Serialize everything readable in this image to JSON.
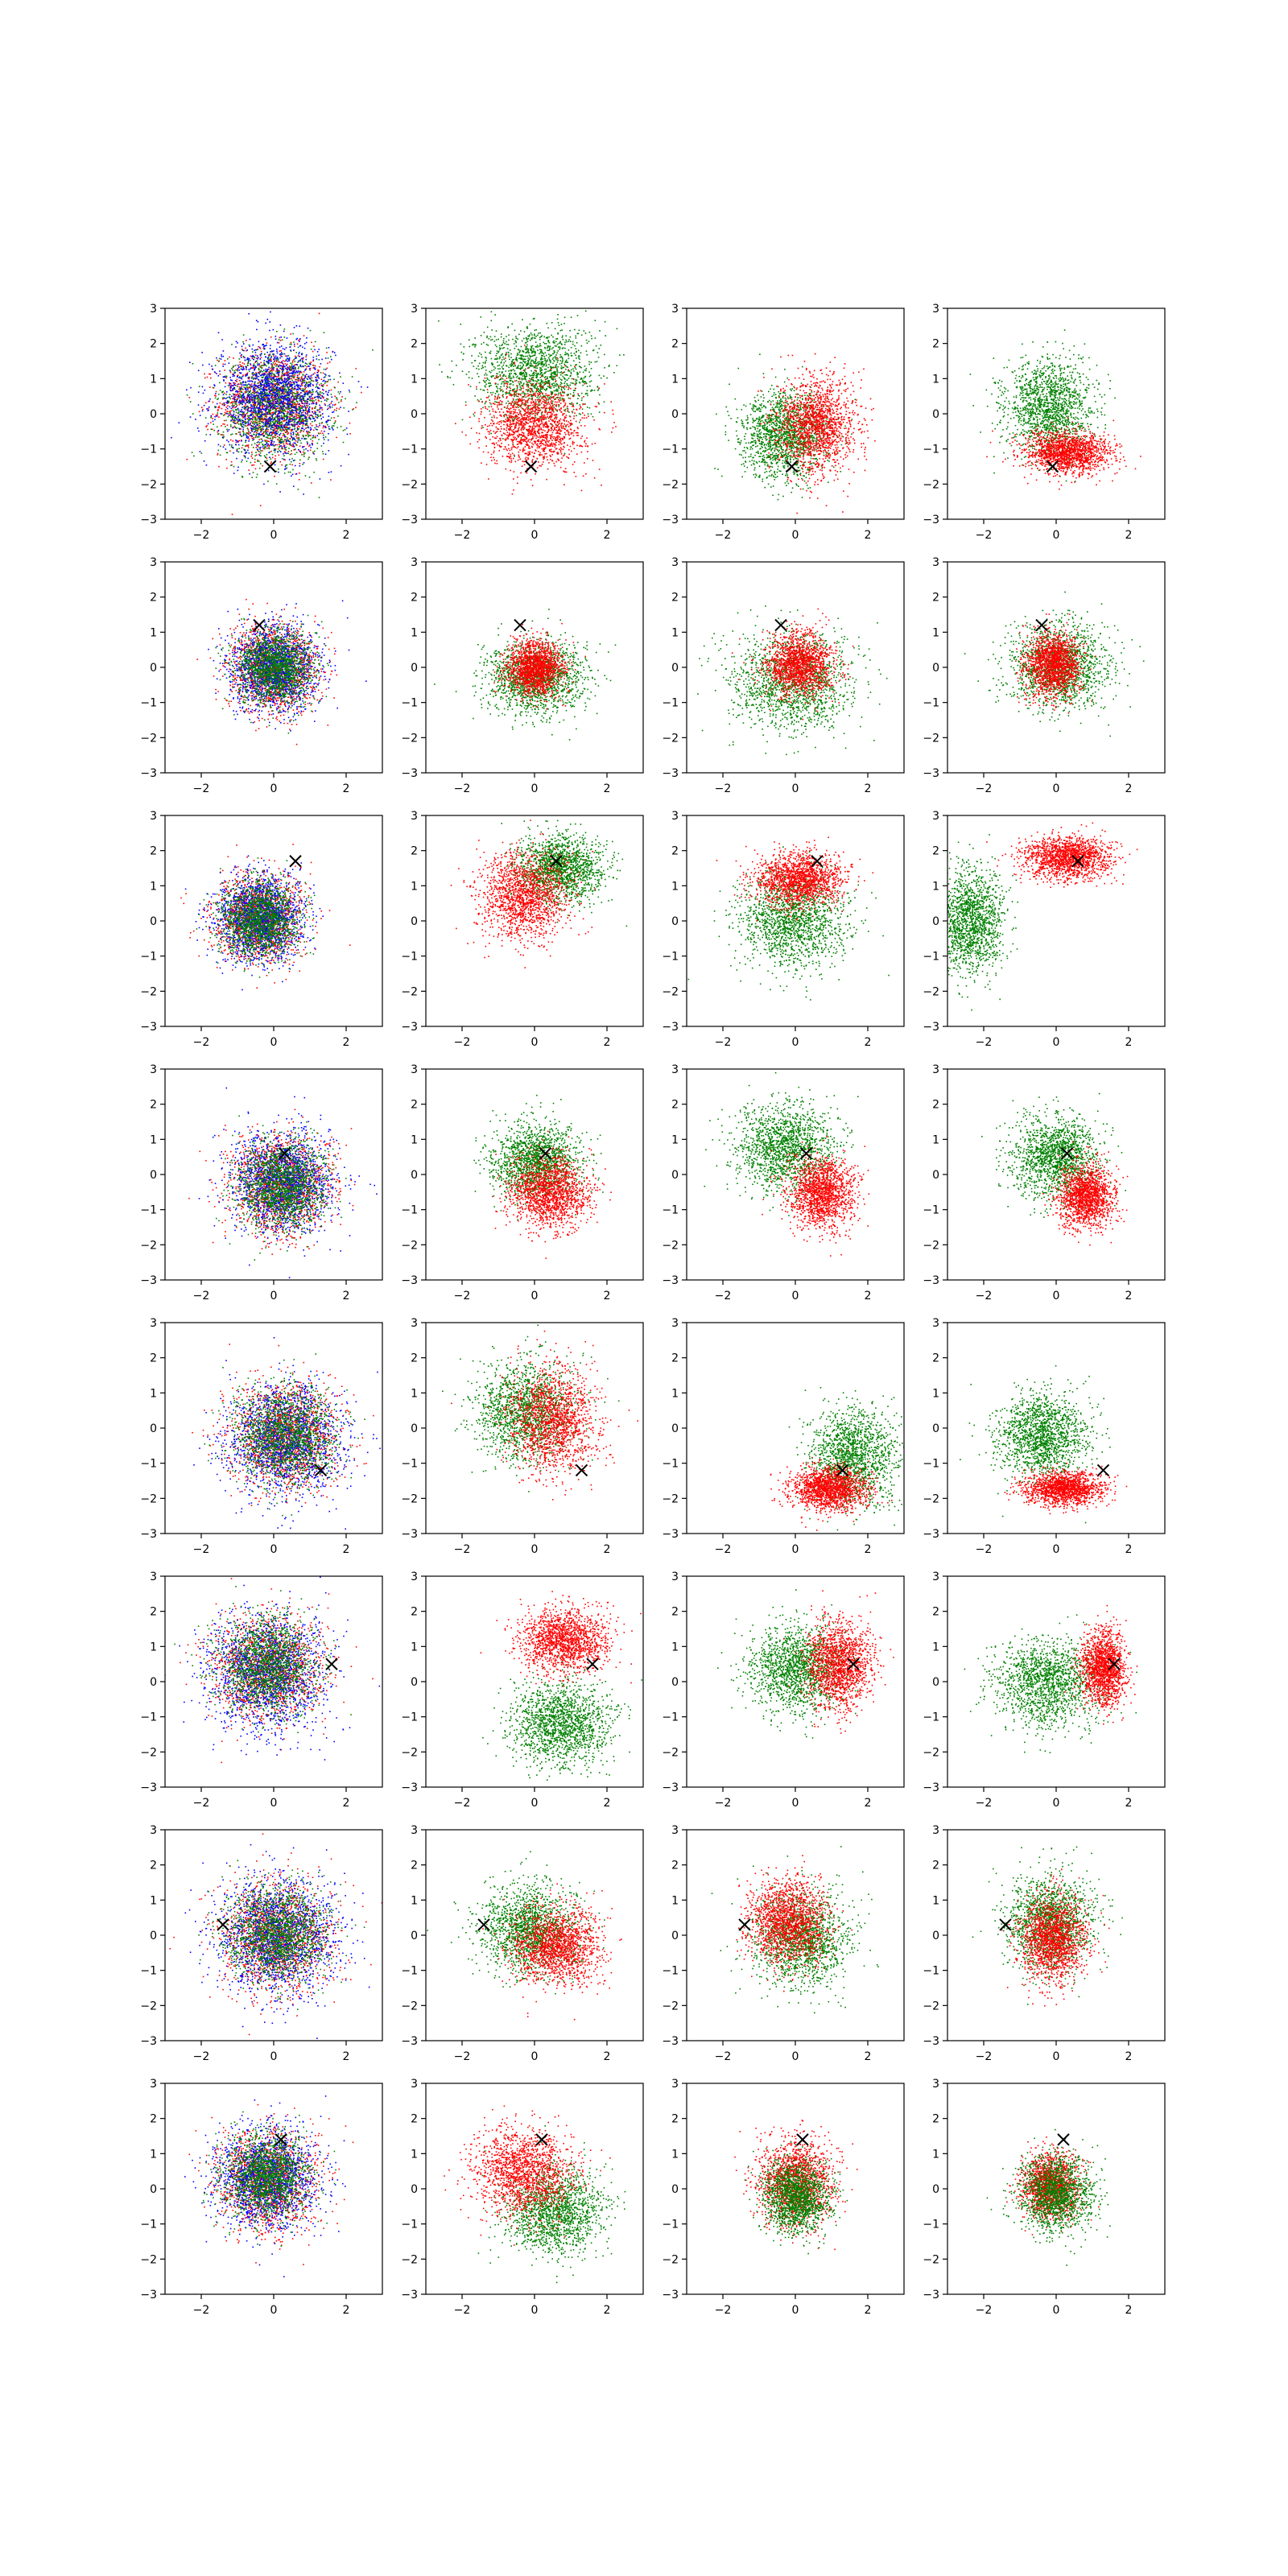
{
  "chart_data": {
    "type": "scatter",
    "title": "",
    "xlabel": "",
    "ylabel": "",
    "grid": false,
    "legend": "none",
    "rows": 8,
    "cols": 4,
    "xlim": [
      -3,
      3
    ],
    "ylim": [
      -3,
      3
    ],
    "xticks": [
      -2,
      0,
      2
    ],
    "yticks": [
      -3,
      -2,
      -1,
      0,
      1,
      2,
      3
    ],
    "xtick_labels": [
      "−2",
      "0",
      "2"
    ],
    "ytick_labels": [
      "−3",
      "−2",
      "−1",
      "0",
      "1",
      "2",
      "3"
    ],
    "marker_symbol": "×",
    "colors": {
      "red": "#ff0000",
      "green": "#008000",
      "blue": "#0000ff",
      "marker": "#000000"
    },
    "panels": [
      {
        "marker": [
          -0.1,
          -1.5
        ],
        "series": [
          {
            "color": "red",
            "cx": 0.0,
            "cy": 0.3,
            "sx": 1.0,
            "sy": 1.0
          },
          {
            "color": "green",
            "cx": 0.0,
            "cy": 0.2,
            "sx": 1.0,
            "sy": 1.0
          },
          {
            "color": "blue",
            "cx": 0.0,
            "cy": 0.5,
            "sx": 1.05,
            "sy": 1.05
          }
        ]
      },
      {
        "marker": [
          -0.1,
          -1.5
        ],
        "series": [
          {
            "color": "green",
            "cx": 0.0,
            "cy": 1.2,
            "sx": 1.1,
            "sy": 0.9
          },
          {
            "color": "red",
            "cx": 0.0,
            "cy": -0.3,
            "sx": 0.9,
            "sy": 0.8
          }
        ]
      },
      {
        "marker": [
          -0.1,
          -1.5
        ],
        "series": [
          {
            "color": "green",
            "cx": -0.3,
            "cy": -0.6,
            "sx": 0.8,
            "sy": 0.8
          },
          {
            "color": "red",
            "cx": 0.6,
            "cy": -0.3,
            "sx": 0.7,
            "sy": 0.9
          }
        ]
      },
      {
        "marker": [
          -0.1,
          -1.5
        ],
        "series": [
          {
            "color": "green",
            "cx": -0.2,
            "cy": 0.2,
            "sx": 0.8,
            "sy": 0.9
          },
          {
            "color": "red",
            "cx": 0.3,
            "cy": -1.1,
            "sx": 0.8,
            "sy": 0.4
          }
        ]
      },
      {
        "marker": [
          -0.4,
          1.2
        ],
        "series": [
          {
            "color": "red",
            "cx": 0.0,
            "cy": 0.0,
            "sx": 0.8,
            "sy": 0.8
          },
          {
            "color": "blue",
            "cx": 0.0,
            "cy": 0.0,
            "sx": 0.8,
            "sy": 0.8
          },
          {
            "color": "green",
            "cx": 0.0,
            "cy": 0.0,
            "sx": 0.7,
            "sy": 0.7
          }
        ]
      },
      {
        "marker": [
          -0.4,
          1.2
        ],
        "series": [
          {
            "color": "green",
            "cx": 0.0,
            "cy": -0.3,
            "sx": 0.9,
            "sy": 0.7
          },
          {
            "color": "red",
            "cx": 0.0,
            "cy": 0.0,
            "sx": 0.5,
            "sy": 0.5
          }
        ]
      },
      {
        "marker": [
          -0.4,
          1.2
        ],
        "series": [
          {
            "color": "green",
            "cx": -0.1,
            "cy": -0.4,
            "sx": 1.1,
            "sy": 0.9
          },
          {
            "color": "red",
            "cx": 0.1,
            "cy": 0.1,
            "sx": 0.6,
            "sy": 0.6
          }
        ]
      },
      {
        "marker": [
          -0.4,
          1.2
        ],
        "series": [
          {
            "color": "green",
            "cx": 0.1,
            "cy": 0.0,
            "sx": 0.9,
            "sy": 0.8
          },
          {
            "color": "red",
            "cx": -0.1,
            "cy": 0.1,
            "sx": 0.5,
            "sy": 0.6
          }
        ]
      },
      {
        "marker": [
          0.6,
          1.7
        ],
        "series": [
          {
            "color": "red",
            "cx": -0.4,
            "cy": 0.1,
            "sx": 0.8,
            "sy": 0.8
          },
          {
            "color": "blue",
            "cx": -0.4,
            "cy": 0.1,
            "sx": 0.8,
            "sy": 0.8
          },
          {
            "color": "green",
            "cx": -0.4,
            "cy": 0.1,
            "sx": 0.7,
            "sy": 0.7
          }
        ]
      },
      {
        "marker": [
          0.6,
          1.7
        ],
        "series": [
          {
            "color": "green",
            "cx": 0.7,
            "cy": 1.5,
            "sx": 0.8,
            "sy": 0.6
          },
          {
            "color": "red",
            "cx": -0.3,
            "cy": 0.7,
            "sx": 0.8,
            "sy": 0.8
          }
        ]
      },
      {
        "marker": [
          0.6,
          1.7
        ],
        "series": [
          {
            "color": "green",
            "cx": -0.1,
            "cy": 0.0,
            "sx": 1.0,
            "sy": 0.9
          },
          {
            "color": "red",
            "cx": 0.1,
            "cy": 1.2,
            "sx": 0.8,
            "sy": 0.5
          }
        ]
      },
      {
        "marker": [
          0.6,
          1.7
        ],
        "series": [
          {
            "color": "green",
            "cx": -2.4,
            "cy": 0.0,
            "sx": 0.6,
            "sy": 1.0
          },
          {
            "color": "red",
            "cx": 0.3,
            "cy": 1.8,
            "sx": 0.8,
            "sy": 0.4
          }
        ]
      },
      {
        "marker": [
          0.3,
          0.6
        ],
        "series": [
          {
            "color": "red",
            "cx": 0.2,
            "cy": -0.3,
            "sx": 0.9,
            "sy": 0.9
          },
          {
            "color": "blue",
            "cx": 0.2,
            "cy": -0.2,
            "sx": 0.95,
            "sy": 0.95
          },
          {
            "color": "green",
            "cx": 0.2,
            "cy": -0.3,
            "sx": 0.8,
            "sy": 0.8
          }
        ]
      },
      {
        "marker": [
          0.3,
          0.6
        ],
        "series": [
          {
            "color": "green",
            "cx": 0.0,
            "cy": 0.4,
            "sx": 0.8,
            "sy": 0.7
          },
          {
            "color": "red",
            "cx": 0.4,
            "cy": -0.5,
            "sx": 0.7,
            "sy": 0.7
          }
        ]
      },
      {
        "marker": [
          0.3,
          0.6
        ],
        "series": [
          {
            "color": "green",
            "cx": -0.3,
            "cy": 0.8,
            "sx": 0.9,
            "sy": 0.8
          },
          {
            "color": "red",
            "cx": 0.7,
            "cy": -0.5,
            "sx": 0.6,
            "sy": 0.7
          }
        ]
      },
      {
        "marker": [
          0.3,
          0.6
        ],
        "series": [
          {
            "color": "green",
            "cx": 0.0,
            "cy": 0.5,
            "sx": 0.8,
            "sy": 0.8
          },
          {
            "color": "red",
            "cx": 0.8,
            "cy": -0.6,
            "sx": 0.5,
            "sy": 0.6
          }
        ]
      },
      {
        "marker": [
          1.3,
          -1.2
        ],
        "series": [
          {
            "color": "red",
            "cx": 0.3,
            "cy": -0.2,
            "sx": 1.0,
            "sy": 1.0
          },
          {
            "color": "blue",
            "cx": 0.3,
            "cy": -0.3,
            "sx": 1.05,
            "sy": 1.05
          },
          {
            "color": "green",
            "cx": 0.3,
            "cy": -0.2,
            "sx": 0.9,
            "sy": 0.9
          }
        ]
      },
      {
        "marker": [
          1.3,
          -1.2
        ],
        "series": [
          {
            "color": "green",
            "cx": -0.3,
            "cy": 0.5,
            "sx": 0.9,
            "sy": 0.9
          },
          {
            "color": "red",
            "cx": 0.5,
            "cy": 0.2,
            "sx": 0.8,
            "sy": 1.0
          }
        ]
      },
      {
        "marker": [
          1.3,
          -1.2
        ],
        "series": [
          {
            "color": "green",
            "cx": 1.6,
            "cy": -0.8,
            "sx": 0.8,
            "sy": 0.9
          },
          {
            "color": "red",
            "cx": 0.9,
            "cy": -1.7,
            "sx": 0.7,
            "sy": 0.4
          }
        ]
      },
      {
        "marker": [
          1.3,
          -1.2
        ],
        "series": [
          {
            "color": "green",
            "cx": -0.4,
            "cy": -0.2,
            "sx": 0.8,
            "sy": 0.8
          },
          {
            "color": "red",
            "cx": 0.2,
            "cy": -1.7,
            "sx": 0.7,
            "sy": 0.3
          }
        ]
      },
      {
        "marker": [
          1.6,
          0.5
        ],
        "series": [
          {
            "color": "red",
            "cx": -0.2,
            "cy": 0.4,
            "sx": 1.0,
            "sy": 1.0
          },
          {
            "color": "blue",
            "cx": -0.2,
            "cy": 0.3,
            "sx": 1.1,
            "sy": 1.1
          },
          {
            "color": "green",
            "cx": -0.2,
            "cy": 0.5,
            "sx": 0.9,
            "sy": 0.9
          }
        ]
      },
      {
        "marker": [
          1.6,
          0.5
        ],
        "series": [
          {
            "color": "green",
            "cx": 0.7,
            "cy": -1.2,
            "sx": 0.9,
            "sy": 0.8
          },
          {
            "color": "red",
            "cx": 0.8,
            "cy": 1.2,
            "sx": 0.8,
            "sy": 0.6
          }
        ]
      },
      {
        "marker": [
          1.6,
          0.5
        ],
        "series": [
          {
            "color": "green",
            "cx": 0.0,
            "cy": 0.4,
            "sx": 0.9,
            "sy": 0.8
          },
          {
            "color": "red",
            "cx": 1.2,
            "cy": 0.5,
            "sx": 0.6,
            "sy": 0.8
          }
        ]
      },
      {
        "marker": [
          1.6,
          0.5
        ],
        "series": [
          {
            "color": "green",
            "cx": -0.2,
            "cy": 0.0,
            "sx": 1.0,
            "sy": 0.8
          },
          {
            "color": "red",
            "cx": 1.3,
            "cy": 0.4,
            "sx": 0.4,
            "sy": 0.7
          }
        ]
      },
      {
        "marker": [
          -1.4,
          0.3
        ],
        "series": [
          {
            "color": "red",
            "cx": 0.1,
            "cy": 0.0,
            "sx": 1.0,
            "sy": 1.0
          },
          {
            "color": "blue",
            "cx": 0.1,
            "cy": 0.0,
            "sx": 1.1,
            "sy": 1.1
          },
          {
            "color": "green",
            "cx": 0.1,
            "cy": 0.1,
            "sx": 0.9,
            "sy": 0.9
          }
        ]
      },
      {
        "marker": [
          -1.4,
          0.3
        ],
        "series": [
          {
            "color": "green",
            "cx": -0.2,
            "cy": 0.2,
            "sx": 0.9,
            "sy": 0.8
          },
          {
            "color": "red",
            "cx": 0.6,
            "cy": -0.3,
            "sx": 0.8,
            "sy": 0.7
          }
        ]
      },
      {
        "marker": [
          -1.4,
          0.3
        ],
        "series": [
          {
            "color": "green",
            "cx": 0.2,
            "cy": -0.1,
            "sx": 0.9,
            "sy": 0.9
          },
          {
            "color": "red",
            "cx": -0.2,
            "cy": 0.4,
            "sx": 0.7,
            "sy": 0.8
          }
        ]
      },
      {
        "marker": [
          -1.4,
          0.3
        ],
        "series": [
          {
            "color": "green",
            "cx": -0.2,
            "cy": 0.4,
            "sx": 0.8,
            "sy": 0.9
          },
          {
            "color": "red",
            "cx": -0.1,
            "cy": -0.1,
            "sx": 0.6,
            "sy": 0.8
          }
        ]
      },
      {
        "marker": [
          0.2,
          1.4
        ],
        "series": [
          {
            "color": "red",
            "cx": -0.2,
            "cy": 0.3,
            "sx": 0.9,
            "sy": 0.9
          },
          {
            "color": "blue",
            "cx": -0.2,
            "cy": 0.3,
            "sx": 0.95,
            "sy": 0.95
          },
          {
            "color": "green",
            "cx": -0.2,
            "cy": 0.4,
            "sx": 0.8,
            "sy": 0.8
          }
        ]
      },
      {
        "marker": [
          0.2,
          1.4
        ],
        "series": [
          {
            "color": "green",
            "cx": 0.5,
            "cy": -0.6,
            "sx": 0.9,
            "sy": 0.8
          },
          {
            "color": "red",
            "cx": -0.3,
            "cy": 0.5,
            "sx": 0.9,
            "sy": 0.8
          }
        ]
      },
      {
        "marker": [
          0.2,
          1.4
        ],
        "series": [
          {
            "color": "red",
            "cx": 0.0,
            "cy": 0.2,
            "sx": 0.7,
            "sy": 0.8
          },
          {
            "color": "green",
            "cx": 0.0,
            "cy": -0.2,
            "sx": 0.6,
            "sy": 0.7
          }
        ]
      },
      {
        "marker": [
          0.2,
          1.4
        ],
        "series": [
          {
            "color": "red",
            "cx": -0.2,
            "cy": 0.1,
            "sx": 0.5,
            "sy": 0.6
          },
          {
            "color": "green",
            "cx": 0.0,
            "cy": -0.1,
            "sx": 0.7,
            "sy": 0.7
          }
        ]
      }
    ]
  }
}
